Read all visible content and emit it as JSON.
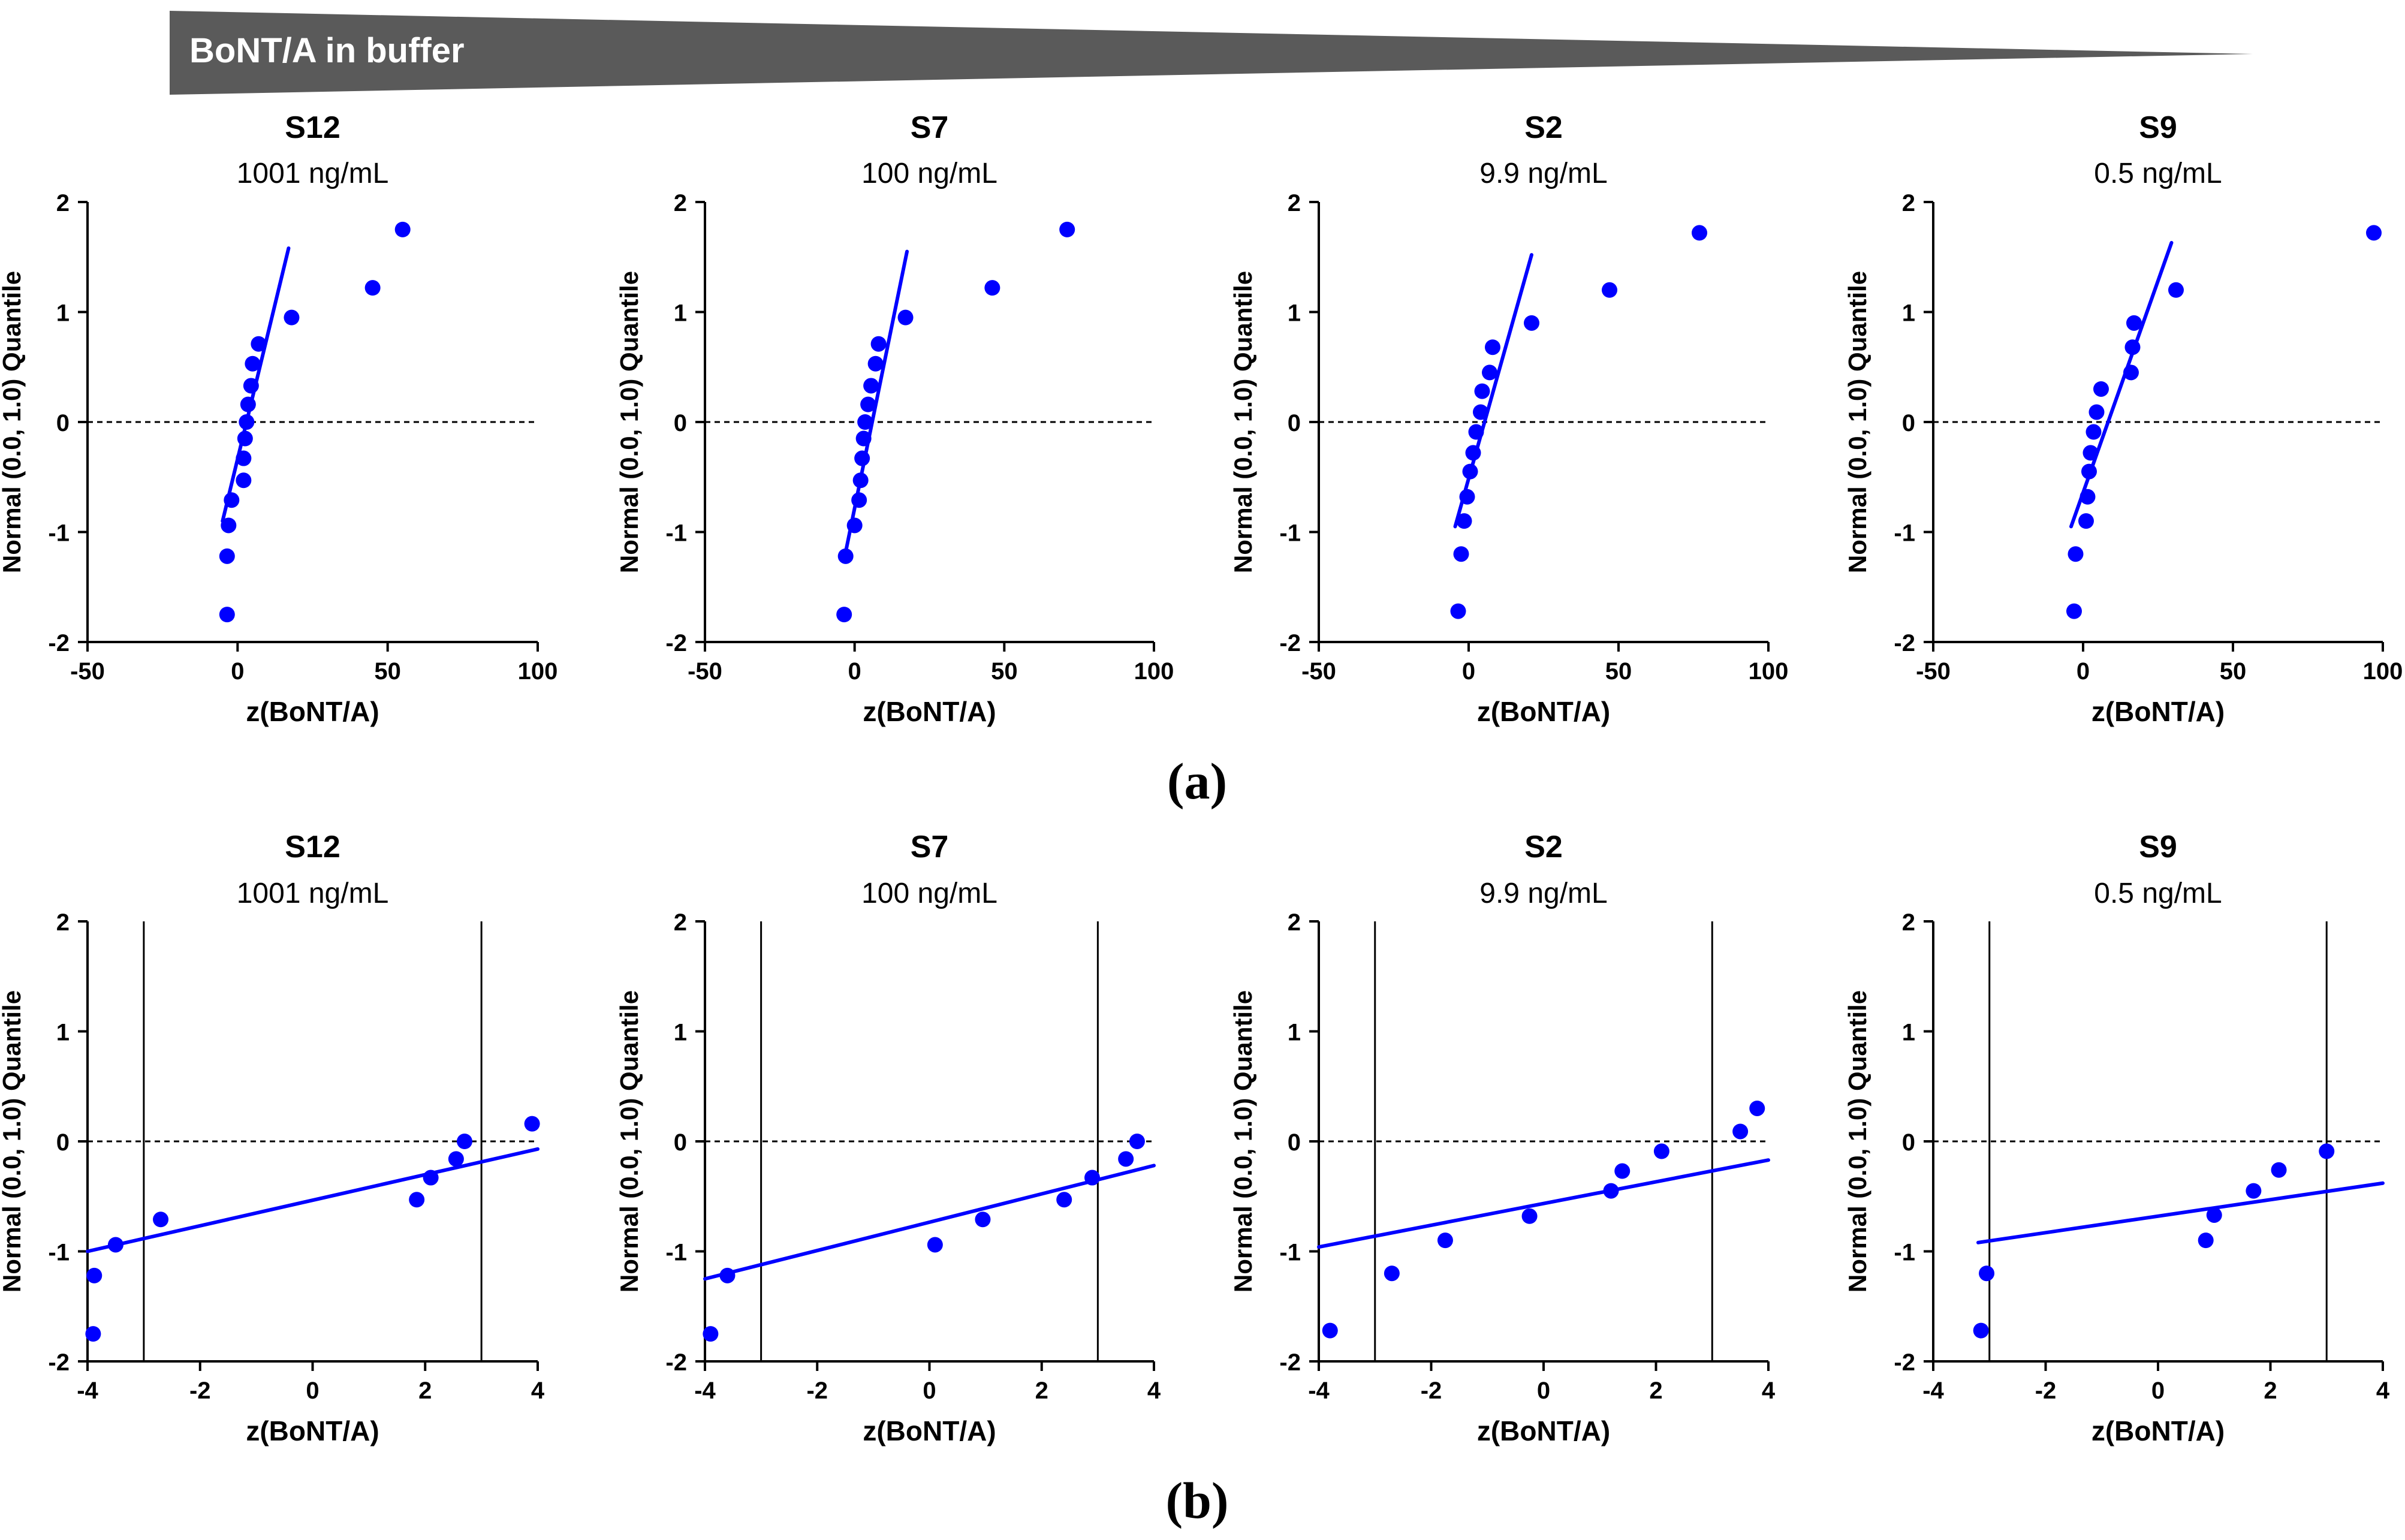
{
  "banner": {
    "label": "BoNT/A in buffer",
    "color": "#5a5a5a"
  },
  "panel_labels": {
    "a": "(a)",
    "b": "(b)"
  },
  "colors": {
    "points": "#0000ff",
    "fit_line": "#0000ff",
    "axis": "#000000"
  },
  "chart_data": [
    {
      "panel": "a",
      "type": "scatter",
      "title": "S12",
      "subtitle": "1001 ng/mL",
      "xlabel": "z(BoNT/A)",
      "ylabel": "Normal (0.0, 1.0) Quantile",
      "xlim": [
        -50,
        100
      ],
      "ylim": [
        -2,
        2
      ],
      "xticks": [
        -50,
        0,
        50,
        100
      ],
      "xtick_labels": [
        "-50",
        "0",
        "50",
        "100"
      ],
      "yticks": [
        -2,
        -1,
        0,
        1,
        2
      ],
      "ytick_labels": [
        "-2",
        "-1",
        "0",
        "1",
        "2"
      ],
      "ref_hline": 0,
      "vlines": [],
      "points": [
        [
          -3.5,
          -1.75
        ],
        [
          -3.5,
          -1.22
        ],
        [
          -3.0,
          -0.94
        ],
        [
          -2.0,
          -0.71
        ],
        [
          2.0,
          -0.53
        ],
        [
          2.0,
          -0.33
        ],
        [
          2.5,
          -0.15
        ],
        [
          3.0,
          0.0
        ],
        [
          3.5,
          0.16
        ],
        [
          4.5,
          0.33
        ],
        [
          5.0,
          0.53
        ],
        [
          7.0,
          0.71
        ],
        [
          18.0,
          0.95
        ],
        [
          45.0,
          1.22
        ],
        [
          55.0,
          1.75
        ]
      ],
      "fit_line": [
        [
          -5.0,
          -0.9
        ],
        [
          17.0,
          1.58
        ]
      ]
    },
    {
      "panel": "a",
      "type": "scatter",
      "title": "S7",
      "subtitle": "100 ng/mL",
      "xlabel": "z(BoNT/A)",
      "ylabel": "Normal (0.0, 1.0) Quantile",
      "xlim": [
        -50,
        100
      ],
      "ylim": [
        -2,
        2
      ],
      "xticks": [
        -50,
        0,
        50,
        100
      ],
      "xtick_labels": [
        "-50",
        "0",
        "50",
        "100"
      ],
      "yticks": [
        -2,
        -1,
        0,
        1,
        2
      ],
      "ytick_labels": [
        "-2",
        "-1",
        "0",
        "1",
        "2"
      ],
      "ref_hline": 0,
      "vlines": [],
      "points": [
        [
          -3.5,
          -1.75
        ],
        [
          -3.0,
          -1.22
        ],
        [
          0.0,
          -0.94
        ],
        [
          1.5,
          -0.71
        ],
        [
          2.0,
          -0.53
        ],
        [
          2.5,
          -0.33
        ],
        [
          3.0,
          -0.15
        ],
        [
          3.5,
          0.0
        ],
        [
          4.5,
          0.16
        ],
        [
          5.5,
          0.33
        ],
        [
          7.0,
          0.53
        ],
        [
          8.0,
          0.71
        ],
        [
          17.0,
          0.95
        ],
        [
          46.0,
          1.22
        ],
        [
          71.0,
          1.75
        ]
      ],
      "fit_line": [
        [
          -3.5,
          -1.25
        ],
        [
          17.5,
          1.55
        ]
      ]
    },
    {
      "panel": "a",
      "type": "scatter",
      "title": "S2",
      "subtitle": "9.9 ng/mL",
      "xlabel": "z(BoNT/A)",
      "ylabel": "Normal (0.0, 1.0) Quantile",
      "xlim": [
        -50,
        100
      ],
      "ylim": [
        -2,
        2
      ],
      "xticks": [
        -50,
        0,
        50,
        100
      ],
      "xtick_labels": [
        "-50",
        "0",
        "50",
        "100"
      ],
      "yticks": [
        -2,
        -1,
        0,
        1,
        2
      ],
      "ytick_labels": [
        "-2",
        "-1",
        "0",
        "1",
        "2"
      ],
      "ref_hline": 0,
      "vlines": [],
      "points": [
        [
          -3.5,
          -1.72
        ],
        [
          -2.5,
          -1.2
        ],
        [
          -1.5,
          -0.9
        ],
        [
          -0.5,
          -0.68
        ],
        [
          0.5,
          -0.45
        ],
        [
          1.5,
          -0.28
        ],
        [
          2.5,
          -0.09
        ],
        [
          4.0,
          0.09
        ],
        [
          4.5,
          0.28
        ],
        [
          7.0,
          0.45
        ],
        [
          8.0,
          0.68
        ],
        [
          21.0,
          0.9
        ],
        [
          47.0,
          1.2
        ],
        [
          77.0,
          1.72
        ]
      ],
      "fit_line": [
        [
          -4.5,
          -0.95
        ],
        [
          21.0,
          1.52
        ]
      ]
    },
    {
      "panel": "a",
      "type": "scatter",
      "title": "S9",
      "subtitle": "0.5 ng/mL",
      "xlabel": "z(BoNT/A)",
      "ylabel": "Normal (0.0, 1.0) Quantile",
      "xlim": [
        -50,
        100
      ],
      "ylim": [
        -2,
        2
      ],
      "xticks": [
        -50,
        0,
        50,
        100
      ],
      "xtick_labels": [
        "-50",
        "0",
        "50",
        "100"
      ],
      "yticks": [
        -2,
        -1,
        0,
        1,
        2
      ],
      "ytick_labels": [
        "-2",
        "-1",
        "0",
        "1",
        "2"
      ],
      "ref_hline": 0,
      "vlines": [],
      "points": [
        [
          -3.0,
          -1.72
        ],
        [
          -2.5,
          -1.2
        ],
        [
          1.0,
          -0.9
        ],
        [
          1.5,
          -0.68
        ],
        [
          2.0,
          -0.45
        ],
        [
          2.5,
          -0.28
        ],
        [
          3.5,
          -0.09
        ],
        [
          4.5,
          0.09
        ],
        [
          6.0,
          0.3
        ],
        [
          16.0,
          0.45
        ],
        [
          16.5,
          0.68
        ],
        [
          17.0,
          0.9
        ],
        [
          31.0,
          1.2
        ],
        [
          97.0,
          1.72
        ]
      ],
      "fit_line": [
        [
          -4.0,
          -0.95
        ],
        [
          29.5,
          1.63
        ]
      ]
    },
    {
      "panel": "b",
      "type": "scatter",
      "title": "S12",
      "subtitle": "1001 ng/mL",
      "xlabel": "z(BoNT/A)",
      "ylabel": "Normal (0.0, 1.0) Quantile",
      "xlim": [
        -4,
        4
      ],
      "ylim": [
        -2,
        2
      ],
      "xticks": [
        -4,
        -2,
        0,
        2,
        4
      ],
      "xtick_labels": [
        "-4",
        "-2",
        "0",
        "2",
        "4"
      ],
      "yticks": [
        -2,
        -1,
        0,
        1,
        2
      ],
      "ytick_labels": [
        "-2",
        "-1",
        "0",
        "1",
        "2"
      ],
      "ref_hline": 0,
      "vlines": [
        -3,
        3
      ],
      "points": [
        [
          -3.9,
          -1.75
        ],
        [
          -3.88,
          -1.22
        ],
        [
          -3.5,
          -0.94
        ],
        [
          -2.7,
          -0.71
        ],
        [
          1.85,
          -0.53
        ],
        [
          2.1,
          -0.33
        ],
        [
          2.55,
          -0.16
        ],
        [
          2.7,
          0.0
        ],
        [
          3.9,
          0.16
        ]
      ],
      "fit_line": [
        [
          -4.0,
          -1.0
        ],
        [
          4.0,
          -0.07
        ]
      ]
    },
    {
      "panel": "b",
      "type": "scatter",
      "title": "S7",
      "subtitle": "100 ng/mL",
      "xlabel": "z(BoNT/A)",
      "ylabel": "Normal (0.0, 1.0) Quantile",
      "xlim": [
        -4,
        4
      ],
      "ylim": [
        -2,
        2
      ],
      "xticks": [
        -4,
        -2,
        0,
        2,
        4
      ],
      "xtick_labels": [
        "-4",
        "-2",
        "0",
        "2",
        "4"
      ],
      "yticks": [
        -2,
        -1,
        0,
        1,
        2
      ],
      "ytick_labels": [
        "-2",
        "-1",
        "0",
        "1",
        "2"
      ],
      "ref_hline": 0,
      "vlines": [
        -3,
        3
      ],
      "points": [
        [
          -3.9,
          -1.75
        ],
        [
          -3.6,
          -1.22
        ],
        [
          0.1,
          -0.94
        ],
        [
          0.95,
          -0.71
        ],
        [
          2.4,
          -0.53
        ],
        [
          2.9,
          -0.33
        ],
        [
          3.5,
          -0.16
        ],
        [
          3.7,
          0.0
        ]
      ],
      "fit_line": [
        [
          -4.0,
          -1.25
        ],
        [
          4.0,
          -0.22
        ]
      ]
    },
    {
      "panel": "b",
      "type": "scatter",
      "title": "S2",
      "subtitle": "9.9 ng/mL",
      "xlabel": "z(BoNT/A)",
      "ylabel": "Normal (0.0, 1.0) Quantile",
      "xlim": [
        -4,
        4
      ],
      "ylim": [
        -2,
        2
      ],
      "xticks": [
        -4,
        -2,
        0,
        2,
        4
      ],
      "xtick_labels": [
        "-4",
        "-2",
        "0",
        "2",
        "4"
      ],
      "yticks": [
        -2,
        -1,
        0,
        1,
        2
      ],
      "ytick_labels": [
        "-2",
        "-1",
        "0",
        "1",
        "2"
      ],
      "ref_hline": 0,
      "vlines": [
        -3,
        3
      ],
      "points": [
        [
          -3.8,
          -1.72
        ],
        [
          -2.7,
          -1.2
        ],
        [
          -1.75,
          -0.9
        ],
        [
          -0.25,
          -0.68
        ],
        [
          1.2,
          -0.45
        ],
        [
          1.4,
          -0.27
        ],
        [
          2.1,
          -0.09
        ],
        [
          3.5,
          0.09
        ],
        [
          3.8,
          0.3
        ]
      ],
      "fit_line": [
        [
          -4.0,
          -0.96
        ],
        [
          4.0,
          -0.17
        ]
      ]
    },
    {
      "panel": "b",
      "type": "scatter",
      "title": "S9",
      "subtitle": "0.5 ng/mL",
      "xlabel": "z(BoNT/A)",
      "ylabel": "Normal (0.0, 1.0) Quantile",
      "xlim": [
        -4,
        4
      ],
      "ylim": [
        -2,
        2
      ],
      "xticks": [
        -4,
        -2,
        0,
        2,
        4
      ],
      "xtick_labels": [
        "-4",
        "-2",
        "0",
        "2",
        "4"
      ],
      "yticks": [
        -2,
        -1,
        0,
        1,
        2
      ],
      "ytick_labels": [
        "-2",
        "-1",
        "0",
        "1",
        "2"
      ],
      "ref_hline": 0,
      "vlines": [
        -3,
        3
      ],
      "points": [
        [
          -3.15,
          -1.72
        ],
        [
          -3.05,
          -1.2
        ],
        [
          0.85,
          -0.9
        ],
        [
          1.0,
          -0.67
        ],
        [
          1.7,
          -0.45
        ],
        [
          2.15,
          -0.26
        ],
        [
          3.0,
          -0.09
        ]
      ],
      "fit_line": [
        [
          -3.2,
          -0.92
        ],
        [
          4.0,
          -0.38
        ]
      ]
    }
  ]
}
